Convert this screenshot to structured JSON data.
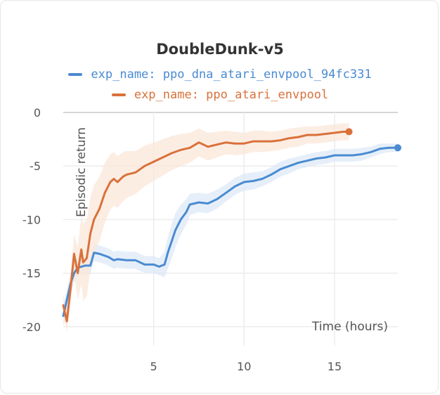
{
  "chart_data": {
    "type": "line",
    "title": "DoubleDunk-v5",
    "xlabel": "Time (hours)",
    "ylabel": "Episodic return",
    "xlim": [
      0,
      18.5
    ],
    "ylim": [
      -21,
      0
    ],
    "xticks": [
      5,
      10,
      15
    ],
    "yticks": [
      0,
      -5,
      -10,
      -15,
      -20
    ],
    "grid": true,
    "legend_position": "top-center",
    "series": [
      {
        "name": "exp_name: ppo_dna_atari_envpool_94fc331",
        "color": "#4a8bd1",
        "band_color": "#dde9f7",
        "x": [
          0,
          0.2,
          0.4,
          0.6,
          0.8,
          1.0,
          1.2,
          1.5,
          1.7,
          2.0,
          2.5,
          2.8,
          3.0,
          3.5,
          4.0,
          4.5,
          5.0,
          5.3,
          5.6,
          5.8,
          6.0,
          6.2,
          6.5,
          6.8,
          7.0,
          7.5,
          8.0,
          8.5,
          9.0,
          9.5,
          10.0,
          10.5,
          11.0,
          11.5,
          12.0,
          12.5,
          13.0,
          13.5,
          14.0,
          14.5,
          15.0,
          15.5,
          16.0,
          16.5,
          17.0,
          17.5,
          18.0,
          18.5
        ],
        "y": [
          -19,
          -17.5,
          -16,
          -15,
          -14.5,
          -14.4,
          -14.3,
          -14.3,
          -13.1,
          -13.2,
          -13.5,
          -13.8,
          -13.7,
          -13.8,
          -13.8,
          -14.2,
          -14.2,
          -14.4,
          -14.2,
          -13.0,
          -12.0,
          -11.0,
          -10.0,
          -9.3,
          -8.6,
          -8.4,
          -8.5,
          -8.1,
          -7.5,
          -6.9,
          -6.5,
          -6.4,
          -6.2,
          -5.8,
          -5.3,
          -5.0,
          -4.7,
          -4.5,
          -4.3,
          -4.2,
          -4.0,
          -4.0,
          -4.0,
          -3.9,
          -3.7,
          -3.4,
          -3.3,
          -3.3
        ],
        "band": [
          1.0,
          1.0,
          1.0,
          0.9,
          0.8,
          0.8,
          0.8,
          0.8,
          0.8,
          0.8,
          0.8,
          0.8,
          0.8,
          0.8,
          0.8,
          0.8,
          0.8,
          0.8,
          1.2,
          1.5,
          1.6,
          1.6,
          1.4,
          1.2,
          1.0,
          0.9,
          0.9,
          0.9,
          0.8,
          0.8,
          0.8,
          0.8,
          0.7,
          0.7,
          0.7,
          0.7,
          0.6,
          0.6,
          0.6,
          0.6,
          0.6,
          0.6,
          0.6,
          0.6,
          0.5,
          0.5,
          0.4,
          0.4
        ]
      },
      {
        "name": "exp_name: ppo_atari_envpool",
        "color": "#d9713a",
        "band_color": "#fbe7da",
        "x": [
          0,
          0.2,
          0.4,
          0.6,
          0.8,
          1.0,
          1.1,
          1.3,
          1.5,
          1.7,
          2.0,
          2.3,
          2.6,
          2.8,
          3.0,
          3.3,
          3.5,
          4.0,
          4.5,
          5.0,
          5.5,
          6.0,
          6.5,
          7.0,
          7.5,
          8.0,
          8.5,
          9.0,
          9.5,
          10.0,
          10.5,
          11.0,
          11.5,
          12.0,
          12.5,
          13.0,
          13.5,
          14.0,
          14.5,
          15.0,
          15.5,
          15.8
        ],
        "y": [
          -18,
          -19.5,
          -16.5,
          -13.2,
          -15.0,
          -12.8,
          -14.0,
          -13.6,
          -11.3,
          -10.0,
          -9.0,
          -7.5,
          -6.5,
          -6.2,
          -6.5,
          -6.0,
          -5.8,
          -5.6,
          -5.0,
          -4.6,
          -4.2,
          -3.8,
          -3.5,
          -3.3,
          -2.8,
          -3.2,
          -3.0,
          -2.8,
          -2.9,
          -2.9,
          -2.7,
          -2.7,
          -2.7,
          -2.6,
          -2.4,
          -2.3,
          -2.1,
          -2.1,
          -2.0,
          -1.9,
          -1.8,
          -1.8
        ],
        "band": [
          1.0,
          1.0,
          1.2,
          1.8,
          2.5,
          3.2,
          3.6,
          3.6,
          3.4,
          3.2,
          3.0,
          2.8,
          2.6,
          2.5,
          2.4,
          2.3,
          2.2,
          2.0,
          1.9,
          1.8,
          1.7,
          1.6,
          1.5,
          1.4,
          1.3,
          1.3,
          1.2,
          1.1,
          1.1,
          1.0,
          1.0,
          1.0,
          0.9,
          0.9,
          0.9,
          0.9,
          0.8,
          0.8,
          0.8,
          0.8,
          0.8,
          0.8
        ]
      }
    ]
  }
}
